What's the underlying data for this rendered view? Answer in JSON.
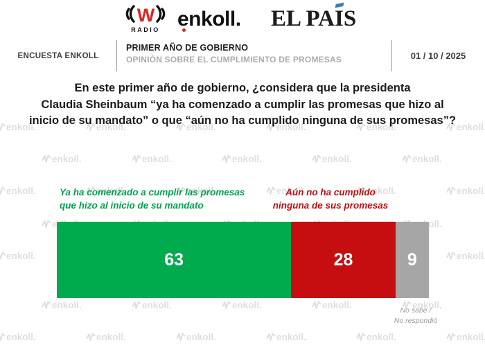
{
  "logos": {
    "w_radio": {
      "letter": "W",
      "sub": "RADIO"
    },
    "enkoll": "enkoll.",
    "el_pais": {
      "prefix": "EL PA",
      "i": "I",
      "suffix": "S",
      "accent_color": "#3c7db0"
    }
  },
  "header": {
    "left": "ENCUESTA ENKOLL",
    "title": "PRIMER AÑO DE GOBIERNO",
    "subtitle": "OPINIÓN SOBRE EL CUMPLIMIENTO DE PROMESAS",
    "date": "01 / 10 / 2025"
  },
  "question": {
    "lines": [
      "En este primer año de gobierno, ¿considera que la presidenta",
      "Claudia Sheinbaum “ya ha comenzado a cumplir las promesas que hizo al",
      "inicio de su mandato” o que “aún no ha cumplido ninguna de sus promesas”?"
    ]
  },
  "chart_data": {
    "type": "bar",
    "stacked": true,
    "orientation": "horizontal",
    "title": "Opinión sobre el cumplimiento de promesas",
    "categories": [
      "Ya ha comenzado a cumplir las promesas que hizo al inicio de su mandato",
      "Aún no ha cumplido ninguna de sus promesas",
      "No sabe / No respondió"
    ],
    "values": [
      63,
      28,
      9
    ],
    "value_labels": [
      "63",
      "28",
      "9"
    ],
    "colors": [
      "#00ab4e",
      "#c60e10",
      "#a6a6a6"
    ],
    "xlim": [
      0,
      100
    ],
    "unit": "percent",
    "legend_position": "above-and-below-bar"
  },
  "labels": {
    "green": {
      "lines": [
        "Ya ha comenzado a cumplir las promesas",
        "que hizo al inicio de su mandato"
      ],
      "color": "#00a350"
    },
    "red": {
      "lines": [
        "Aún no ha cumplido",
        "ninguna de sus promesas"
      ],
      "color": "#c20e10"
    },
    "gray_note": {
      "lines": [
        "No sabe /",
        "No respondió"
      ],
      "color": "#9a9a9a"
    }
  },
  "watermark": {
    "text": "enkoll."
  }
}
